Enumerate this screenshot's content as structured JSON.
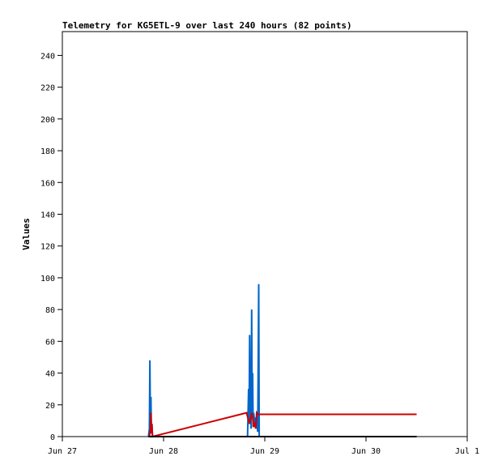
{
  "chart_data": {
    "type": "line",
    "title": "Telemetry for KG5ETL-9 over last 240 hours (82 points)",
    "xlabel": "",
    "ylabel": "Values",
    "xlim": [
      "Jun 27",
      "Jul 1"
    ],
    "ylim": [
      0,
      255
    ],
    "x_ticks": [
      "Jun 27",
      "Jun 28",
      "Jun 29",
      "Jun 30",
      "Jul 1"
    ],
    "y_ticks": [
      0,
      20,
      40,
      60,
      80,
      100,
      120,
      140,
      160,
      180,
      200,
      220,
      240
    ],
    "grid": false,
    "legend": "none",
    "series": [
      {
        "color": "#0066cc",
        "x": [
          27.85,
          27.86,
          27.865,
          27.87,
          27.875,
          27.88,
          27.885,
          27.89,
          28.83,
          28.84,
          28.845,
          28.85,
          28.855,
          28.86,
          28.865,
          28.87,
          28.875,
          28.88,
          28.885,
          28.89,
          28.9,
          28.91,
          28.92,
          28.93,
          28.94,
          28.945
        ],
        "y": [
          0,
          5,
          48,
          3,
          25,
          2,
          8,
          0,
          0,
          30,
          8,
          64,
          10,
          32,
          5,
          80,
          12,
          40,
          6,
          15,
          9,
          12,
          8,
          3,
          96,
          0
        ]
      },
      {
        "color": "#cc0000",
        "x": [
          27.86,
          27.87,
          27.875,
          27.88,
          27.885,
          27.89,
          28.82,
          28.84,
          28.85,
          28.87,
          28.88,
          28.89,
          28.9,
          28.91,
          28.92,
          28.93,
          29.3,
          30.0,
          30.5
        ],
        "y": [
          0,
          5,
          15,
          2,
          8,
          0,
          15,
          10,
          8,
          15,
          12,
          6,
          9,
          5,
          15,
          14,
          14,
          14,
          14
        ]
      },
      {
        "color": "#000000",
        "x": [
          27.85,
          28.0,
          28.5,
          29.0,
          29.5,
          30.0,
          30.5
        ],
        "y": [
          0,
          0,
          0,
          0,
          0,
          0,
          0
        ]
      }
    ]
  }
}
